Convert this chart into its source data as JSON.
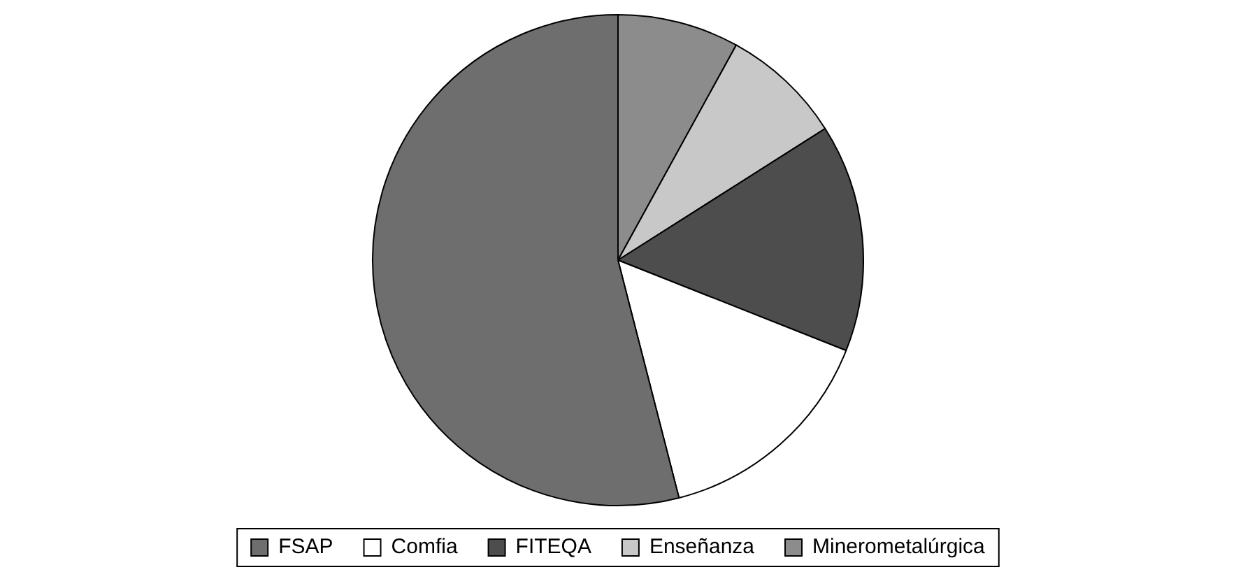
{
  "chart_data": {
    "type": "pie",
    "categories": [
      "FSAP",
      "Comfia",
      "FITEQA",
      "Enseñanza",
      "Minerometalúrgica"
    ],
    "values": [
      54,
      15,
      15,
      8,
      8
    ],
    "colors": [
      "#6e6e6e",
      "#ffffff",
      "#4d4d4d",
      "#c8c8c8",
      "#8c8c8c"
    ],
    "legend": "bottom"
  }
}
